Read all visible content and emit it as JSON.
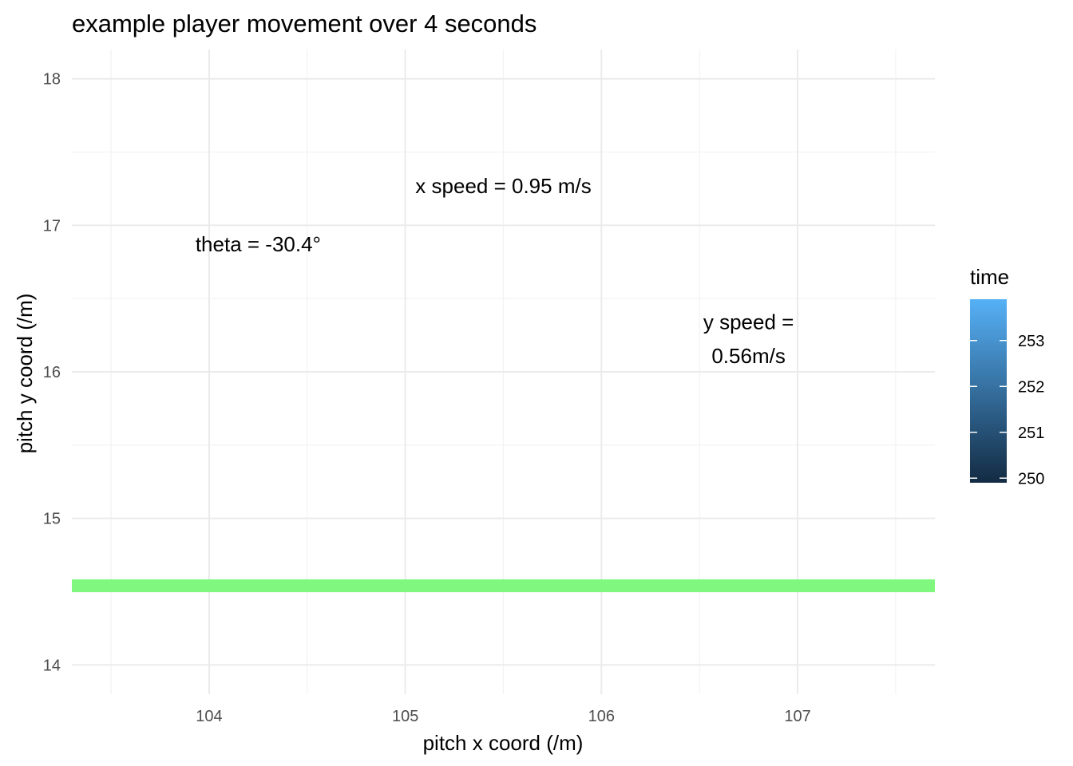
{
  "chart_data": {
    "type": "line",
    "title": "example player movement over 4 seconds",
    "xlabel": "pitch x coord (/m)",
    "ylabel": "pitch y coord (/m)",
    "xlim": [
      103.3,
      107.7
    ],
    "ylim": [
      13.8,
      18.2
    ],
    "x_ticks": [
      104,
      105,
      106,
      107
    ],
    "y_ticks": [
      14,
      15,
      16,
      17,
      18
    ],
    "grid": true,
    "series": [
      {
        "color": "#80f880",
        "x": [
          103.3,
          107.7
        ],
        "y": [
          14.54,
          14.54
        ]
      }
    ],
    "annotations": [
      {
        "text": "x speed = 0.95 m/s",
        "x": 105.5,
        "y": 17.27
      },
      {
        "text": "theta = -30.4°",
        "x": 104.25,
        "y": 16.87
      },
      {
        "text": "y speed =",
        "x": 106.75,
        "y": 16.34
      },
      {
        "text": "0.56m/s",
        "x": 106.75,
        "y": 16.11
      }
    ],
    "legend": {
      "title": "time",
      "placement": "right",
      "min": 249.9,
      "max": 253.9,
      "ticks": [
        250,
        251,
        252,
        253
      ],
      "color_low": "#132b43",
      "color_high": "#56b1f7"
    }
  }
}
